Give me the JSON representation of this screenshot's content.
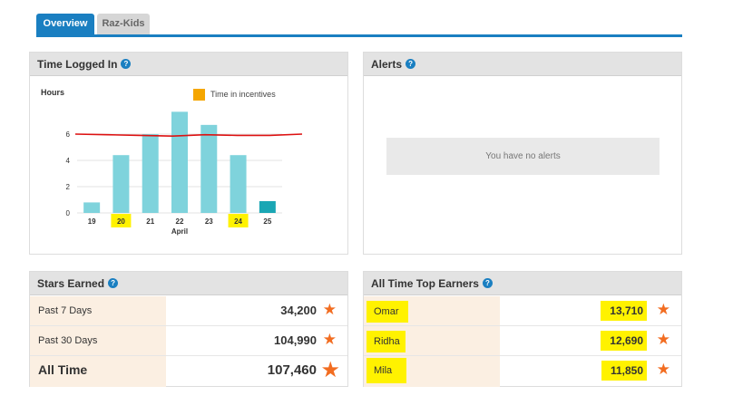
{
  "tabs": [
    {
      "label": "Overview"
    },
    {
      "label": "Raz-Kids"
    }
  ],
  "time_logged": {
    "title": "Time Logged In",
    "help": "?"
  },
  "alerts": {
    "title": "Alerts",
    "help": "?",
    "empty_message": "You have no alerts"
  },
  "stars": {
    "title": "Stars Earned",
    "help": "?",
    "rows": [
      {
        "label": "Past 7 Days",
        "value": "34,200"
      },
      {
        "label": "Past 30 Days",
        "value": "104,990"
      },
      {
        "label": "All Time",
        "value": "107,460"
      }
    ]
  },
  "top_earners": {
    "title": "All Time Top Earners",
    "help": "?",
    "rows": [
      {
        "name": "Omar",
        "value": "13,710"
      },
      {
        "name": "Ridha",
        "value": "12,690"
      },
      {
        "name": "Mila",
        "value": "11,850"
      }
    ]
  },
  "colors": {
    "accent": "#1a7fc1",
    "bar": "#7fd3dc",
    "bar_selected": "#1aa6b4",
    "incentive": "#f5a600",
    "average_line": "#dd1111",
    "star": "#f26d21",
    "highlight": "#fff200"
  },
  "chart_data": {
    "type": "bar",
    "ylabel": "Hours",
    "xlabel": "April",
    "legend": "Time in incentives",
    "categories": [
      "19",
      "20",
      "21",
      "22",
      "23",
      "24",
      "25"
    ],
    "highlighted_categories": [
      "20",
      "24"
    ],
    "y_ticks": [
      0,
      2,
      4,
      6
    ],
    "ylim": [
      0,
      8
    ],
    "grid": true,
    "series": [
      {
        "name": "Time in incentives",
        "values": [
          0.8,
          4.4,
          6.0,
          7.7,
          6.7,
          4.4,
          0.9
        ]
      }
    ],
    "average_line": [
      6.0,
      5.95,
      5.9,
      5.85,
      5.95,
      5.9,
      5.9,
      6.0
    ]
  }
}
